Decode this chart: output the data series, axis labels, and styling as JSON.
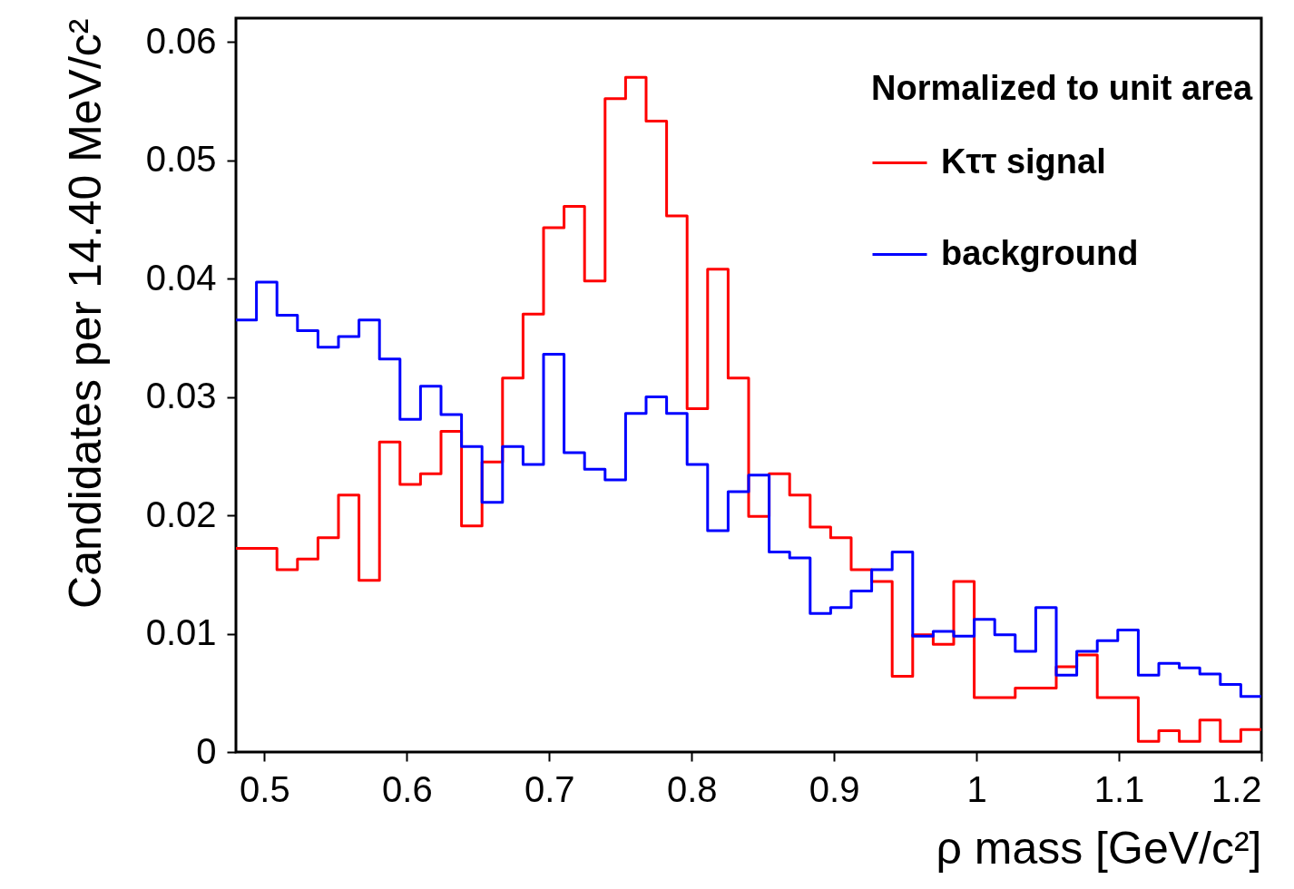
{
  "chart_data": {
    "type": "histogram",
    "xlabel": "ρ mass [GeV/c²]",
    "ylabel": "Candidates per 14.40 MeV/c²",
    "legend_title": "Normalized to unit area",
    "bins": [
      0.48,
      0.4944,
      0.5088,
      0.5232,
      0.5376,
      0.552,
      0.5664,
      0.5808,
      0.5952,
      0.6096,
      0.624,
      0.6384,
      0.6528,
      0.6672,
      0.6816,
      0.696,
      0.7104,
      0.7248,
      0.7392,
      0.7536,
      0.768,
      0.7824,
      0.7968,
      0.8112,
      0.8256,
      0.84,
      0.8544,
      0.8688,
      0.8832,
      0.8976,
      0.912,
      0.9264,
      0.9408,
      0.9552,
      0.9696,
      0.984,
      0.9984,
      1.0128,
      1.0272,
      1.0416,
      1.056,
      1.0704,
      1.0848,
      1.0992,
      1.1136,
      1.128,
      1.1424,
      1.1568,
      1.1712,
      1.1856,
      1.2
    ],
    "series": [
      {
        "name": "Kττ signal",
        "color": "#ff0000",
        "values": [
          0.0172,
          0.0172,
          0.0154,
          0.0163,
          0.0181,
          0.0217,
          0.0145,
          0.0262,
          0.0226,
          0.0235,
          0.0271,
          0.0191,
          0.0245,
          0.0316,
          0.037,
          0.0443,
          0.0461,
          0.0398,
          0.0552,
          0.057,
          0.0533,
          0.0453,
          0.029,
          0.0408,
          0.0316,
          0.0199,
          0.0235,
          0.0217,
          0.019,
          0.0181,
          0.0154,
          0.0144,
          0.0064,
          0.0099,
          0.0091,
          0.0144,
          0.0046,
          0.0046,
          0.0054,
          0.0054,
          0.0072,
          0.0082,
          0.0046,
          0.0046,
          0.0009,
          0.0018,
          0.0009,
          0.0027,
          0.0009,
          0.0019
        ]
      },
      {
        "name": "background",
        "color": "#0000ff",
        "values": [
          0.0365,
          0.0397,
          0.0369,
          0.0356,
          0.0342,
          0.0351,
          0.0365,
          0.0332,
          0.0281,
          0.0309,
          0.0285,
          0.0258,
          0.0211,
          0.0258,
          0.0243,
          0.0336,
          0.0253,
          0.0239,
          0.023,
          0.0286,
          0.03,
          0.0286,
          0.0243,
          0.0187,
          0.022,
          0.0234,
          0.0169,
          0.0164,
          0.0117,
          0.0122,
          0.0136,
          0.0154,
          0.0169,
          0.0098,
          0.0102,
          0.0098,
          0.0112,
          0.0099,
          0.0085,
          0.0122,
          0.0065,
          0.0085,
          0.0094,
          0.0103,
          0.0065,
          0.0075,
          0.0071,
          0.0066,
          0.0057,
          0.0047
        ]
      }
    ],
    "xlim": [
      0.48,
      1.2
    ],
    "xticks": [
      0.5,
      0.6,
      0.7,
      0.8,
      0.9,
      1,
      1.1,
      1.2
    ],
    "ylim": [
      0,
      0.062
    ],
    "yticks": [
      0,
      0.01,
      0.02,
      0.03,
      0.04,
      0.05,
      0.06
    ],
    "grid": false,
    "legend": "top right",
    "line_style": "solid"
  }
}
